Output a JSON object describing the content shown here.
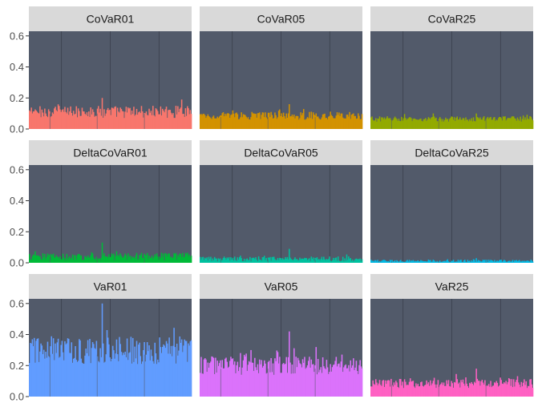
{
  "chart_data": {
    "type": "bar",
    "layout": "facet-grid 3x3",
    "grid": true,
    "legend": "none",
    "panel_background": "#525a6a",
    "strip_background": "#d9d9d9",
    "ylim": [
      0,
      0.63
    ],
    "y_ticks": [
      0.0,
      0.2,
      0.4,
      0.6
    ],
    "y_tick_labels": [
      "0.0",
      "0.2",
      "0.4",
      "0.6"
    ],
    "n_bars": 170,
    "panels": [
      {
        "strip": "CoVaR01",
        "color": "#f8766d",
        "mean": 0.11,
        "spread": 0.04,
        "max": 0.2
      },
      {
        "strip": "CoVaR05",
        "color": "#d39200",
        "mean": 0.085,
        "spread": 0.025,
        "max": 0.16
      },
      {
        "strip": "CoVaR25",
        "color": "#93aa00",
        "mean": 0.065,
        "spread": 0.018,
        "max": 0.1
      },
      {
        "strip": "DeltaCoVaR01",
        "color": "#00ba38",
        "mean": 0.04,
        "spread": 0.025,
        "max": 0.13
      },
      {
        "strip": "DeltaCoVaR05",
        "color": "#00c19f",
        "mean": 0.025,
        "spread": 0.016,
        "max": 0.09
      },
      {
        "strip": "DeltaCoVaR25",
        "color": "#00b9e3",
        "mean": 0.012,
        "spread": 0.008,
        "max": 0.03
      },
      {
        "strip": "VaR01",
        "color": "#619cff",
        "mean": 0.3,
        "spread": 0.09,
        "max": 0.6
      },
      {
        "strip": "VaR05",
        "color": "#db72fb",
        "mean": 0.2,
        "spread": 0.06,
        "max": 0.42
      },
      {
        "strip": "VaR25",
        "color": "#ff61c3",
        "mean": 0.085,
        "spread": 0.03,
        "max": 0.18
      }
    ]
  }
}
